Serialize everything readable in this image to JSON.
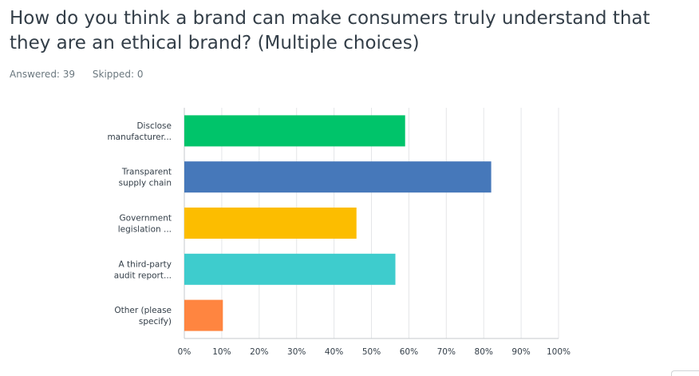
{
  "question": {
    "title": "How do you think a brand can make consumers truly understand that they are an ethical brand? (Multiple choices)",
    "answered": "Answered: 39",
    "skipped": "Skipped: 0"
  },
  "chart_data": {
    "type": "bar",
    "orientation": "horizontal",
    "categories": [
      [
        "Disclose",
        "manufacturer..."
      ],
      [
        "Transparent",
        "supply chain"
      ],
      [
        "Government",
        "legislation ..."
      ],
      [
        "A third-party",
        "audit report..."
      ],
      [
        "Other (please",
        "specify)"
      ]
    ],
    "values": [
      59,
      82,
      46,
      56.4,
      10.3
    ],
    "colors": [
      "#00c46a",
      "#4678ba",
      "#fcbd00",
      "#3ecccd",
      "#ff8540"
    ],
    "xlim": [
      0,
      100
    ],
    "ticks": [
      0,
      10,
      20,
      30,
      40,
      50,
      60,
      70,
      80,
      90,
      100
    ],
    "tick_suffix": "%",
    "grid": true,
    "xlabel": "",
    "ylabel": ""
  }
}
